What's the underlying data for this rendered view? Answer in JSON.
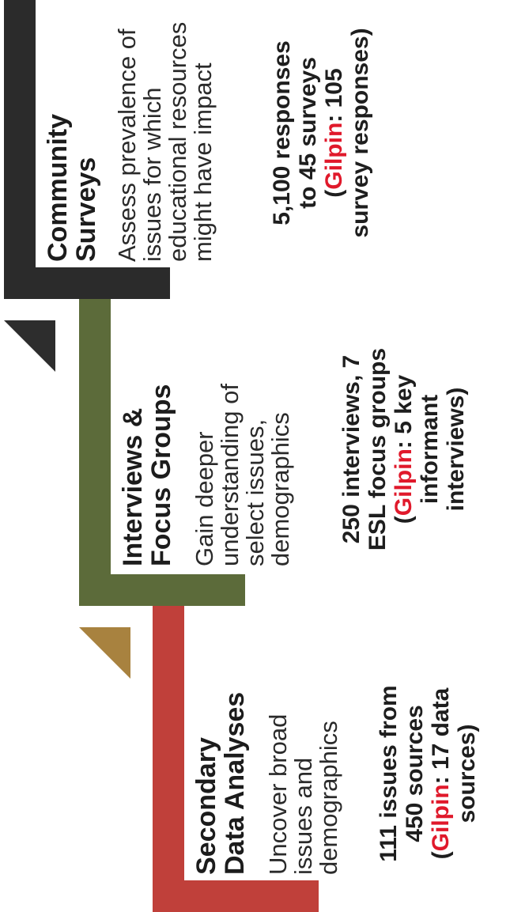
{
  "colors": {
    "secondary": "#c0403a",
    "secondary_arrow": "#a8823f",
    "interviews": "#5c6b3a",
    "interviews_arrow": "#2d2d2d",
    "surveys": "#2b2b2b",
    "gilpin": "#e0192b"
  },
  "stages": [
    {
      "title_lines": [
        "Secondary",
        "Data Analyses"
      ],
      "desc_lines": [
        "Uncover broad",
        "issues and",
        "demographics"
      ],
      "stat_lines": [
        "111 issues from",
        "450 sources"
      ],
      "stat_gilpin_open": "(",
      "stat_gilpin_name": "Gilpin",
      "stat_gilpin_rest": ": 17 data",
      "stat_tail": "sources)"
    },
    {
      "title_lines": [
        "Interviews &",
        "Focus Groups"
      ],
      "desc_lines": [
        "Gain deeper",
        "understanding of",
        "select issues,",
        "demographics"
      ],
      "stat_lines": [
        "250 interviews, 7",
        "ESL focus groups"
      ],
      "stat_gilpin_open": "(",
      "stat_gilpin_name": "Gilpin",
      "stat_gilpin_rest": ": 5 key",
      "stat_tail_lines": [
        "informant",
        "interviews)"
      ]
    },
    {
      "title_lines": [
        "Community",
        "Surveys"
      ],
      "desc_lines": [
        "Assess prevalence of",
        "issues for which",
        "educational resources",
        "might have impact"
      ],
      "stat_lines": [
        "5,100 responses",
        "to 45 surveys"
      ],
      "stat_gilpin_open": "(",
      "stat_gilpin_name": "Gilpin",
      "stat_gilpin_rest": ": 105",
      "stat_tail": "survey responses)"
    }
  ]
}
